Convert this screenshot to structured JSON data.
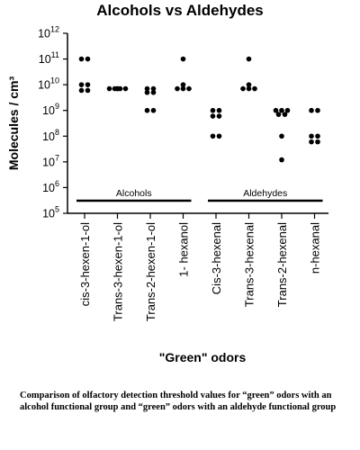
{
  "chart_data": {
    "type": "scatter",
    "title": "Alcohols vs Aldehydes",
    "ylabel": "Molecules / cm³",
    "xlabel": "\"Green\" odors",
    "y_scale": "log",
    "ylim": [
      100000,
      1000000000000
    ],
    "y_tick_exponents": [
      5,
      6,
      7,
      8,
      9,
      10,
      11,
      12
    ],
    "y_tick_base": "10",
    "categories": [
      "cis-3-hexen-1-ol",
      "Trans-3-hexen-1-ol",
      "Trans-2-hexen-1-ol",
      "1- hexanol",
      "Cis-3-hexenal",
      "Trans-3-hexenal",
      "Trans-2-hexenal",
      "n-hexanal"
    ],
    "groups": [
      {
        "label": "Alcohols",
        "categories": [
          "cis-3-hexen-1-ol",
          "Trans-3-hexen-1-ol",
          "Trans-2-hexen-1-ol",
          "1- hexanol"
        ]
      },
      {
        "label": "Aldehydes",
        "categories": [
          "Cis-3-hexenal",
          "Trans-3-hexenal",
          "Trans-2-hexenal",
          "n-hexanal"
        ]
      }
    ],
    "points": [
      {
        "category": "cis-3-hexen-1-ol",
        "values": [
          100000000000,
          100000000000,
          10000000000,
          10000000000,
          6000000000,
          6000000000
        ]
      },
      {
        "category": "Trans-3-hexen-1-ol",
        "values": [
          7000000000,
          7000000000,
          7000000000,
          7000000000,
          7000000000,
          7000000000
        ]
      },
      {
        "category": "Trans-2-hexen-1-ol",
        "values": [
          7000000000,
          7000000000,
          5000000000,
          5000000000,
          1000000000,
          1000000000
        ]
      },
      {
        "category": "1- hexanol",
        "values": [
          100000000000,
          10000000000,
          7000000000,
          7000000000,
          7000000000
        ]
      },
      {
        "category": "Cis-3-hexenal",
        "values": [
          1000000000,
          1000000000,
          600000000,
          600000000,
          100000000,
          100000000
        ]
      },
      {
        "category": "Trans-3-hexenal",
        "values": [
          100000000000,
          10000000000,
          7000000000,
          7000000000,
          7000000000
        ]
      },
      {
        "category": "Trans-2-hexenal",
        "values": [
          1000000000,
          1000000000,
          1000000000,
          700000000,
          700000000,
          100000000,
          12000000
        ]
      },
      {
        "category": "n-hexanal",
        "values": [
          1000000000,
          1000000000,
          100000000,
          100000000,
          60000000,
          60000000
        ]
      }
    ],
    "marker_color": "#000000",
    "grid": false,
    "legend": "none"
  },
  "caption": "Comparison of olfactory detection threshold values for “green” odors with an alcohol functional group  and “green” odors with an aldehyde functional group"
}
